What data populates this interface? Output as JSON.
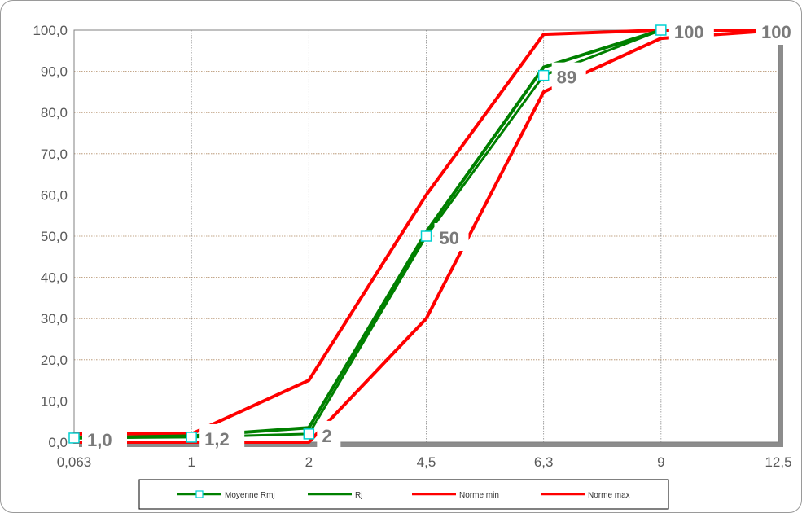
{
  "chart_data": {
    "type": "line",
    "x_categories": [
      "0,063",
      "1",
      "2",
      "4,5",
      "6,3",
      "9",
      "12,5"
    ],
    "y_ticks": [
      "0,0",
      "10,0",
      "20,0",
      "30,0",
      "40,0",
      "50,0",
      "60,0",
      "70,0",
      "80,0",
      "90,0",
      "100,0"
    ],
    "ylim": [
      0,
      100
    ],
    "grid": true,
    "legend_position": "bottom",
    "series": [
      {
        "name": "Moyenne Rmj",
        "color": "#00d0d0",
        "line_color": "#008000",
        "marker": "square",
        "values": [
          1.0,
          1.2,
          2,
          50,
          89,
          100,
          null
        ]
      },
      {
        "name": "Rj",
        "color": "#008000",
        "values": [
          1.0,
          1.5,
          3.5,
          51,
          91,
          100,
          null
        ]
      },
      {
        "name": "Norme min",
        "color": "#ff0000",
        "values": [
          0,
          0,
          0,
          30,
          85,
          98,
          100
        ]
      },
      {
        "name": "Norme max",
        "color": "#ff0000",
        "values": [
          2,
          2,
          15,
          60,
          99,
          100,
          100
        ]
      }
    ],
    "data_labels": [
      {
        "text": "1,0",
        "series": 0,
        "index": 0
      },
      {
        "text": "1,2",
        "series": 0,
        "index": 1
      },
      {
        "text": "2",
        "series": 0,
        "index": 2
      },
      {
        "text": "50",
        "series": 0,
        "index": 3
      },
      {
        "text": "89",
        "series": 0,
        "index": 4
      },
      {
        "text": "100",
        "series": 0,
        "index": 5
      },
      {
        "text": "100",
        "series": 3,
        "index": 6
      }
    ]
  }
}
